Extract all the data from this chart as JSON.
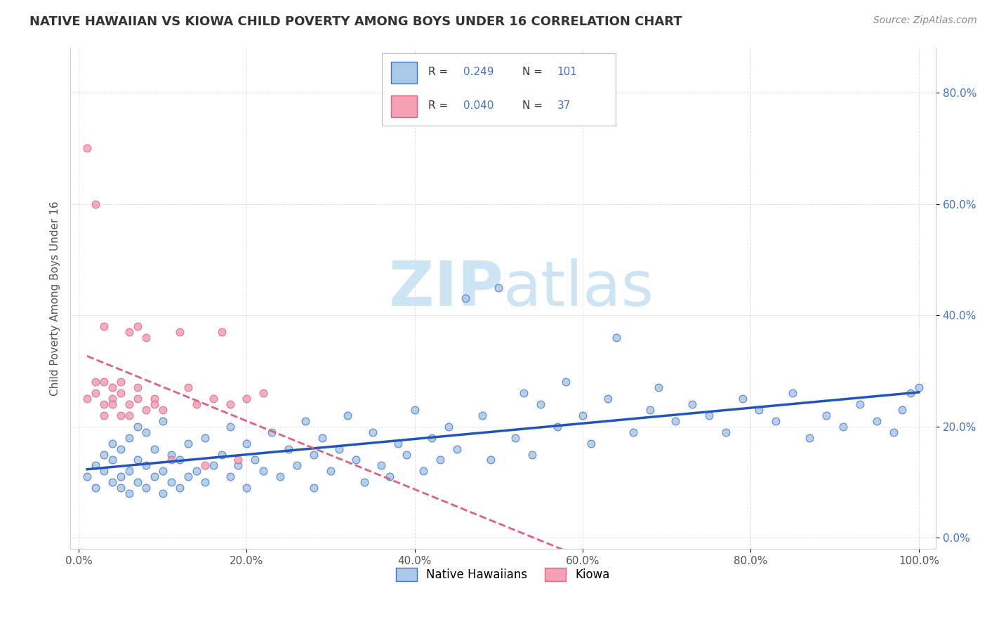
{
  "title": "NATIVE HAWAIIAN VS KIOWA CHILD POVERTY AMONG BOYS UNDER 16 CORRELATION CHART",
  "source": "Source: ZipAtlas.com",
  "ylabel": "Child Poverty Among Boys Under 16",
  "xlim": [
    0.0,
    1.0
  ],
  "x_ticks": [
    0.0,
    0.2,
    0.4,
    0.6,
    0.8,
    1.0
  ],
  "x_tick_labels": [
    "0.0%",
    "20.0%",
    "40.0%",
    "60.0%",
    "80.0%",
    "100.0%"
  ],
  "y_ticks": [
    0.0,
    0.2,
    0.4,
    0.6,
    0.8
  ],
  "y_tick_labels": [
    "0.0%",
    "20.0%",
    "40.0%",
    "60.0%",
    "80.0%"
  ],
  "color_hawaiian": "#aac8e8",
  "color_hawaiian_edge": "#4472c4",
  "color_kiowa": "#f4a0b5",
  "color_kiowa_edge": "#e06080",
  "color_hawaiian_line": "#2255bb",
  "color_kiowa_line": "#e06080",
  "watermark_color": "#cce4f4",
  "background_color": "#ffffff",
  "title_color": "#333333",
  "title_fontsize": 13,
  "nhaw_x": [
    0.01,
    0.02,
    0.02,
    0.03,
    0.03,
    0.04,
    0.04,
    0.04,
    0.05,
    0.05,
    0.05,
    0.06,
    0.06,
    0.06,
    0.07,
    0.07,
    0.07,
    0.08,
    0.08,
    0.08,
    0.09,
    0.09,
    0.1,
    0.1,
    0.1,
    0.11,
    0.11,
    0.12,
    0.12,
    0.13,
    0.13,
    0.14,
    0.15,
    0.15,
    0.16,
    0.17,
    0.18,
    0.18,
    0.19,
    0.2,
    0.2,
    0.21,
    0.22,
    0.23,
    0.24,
    0.25,
    0.26,
    0.27,
    0.28,
    0.28,
    0.29,
    0.3,
    0.31,
    0.32,
    0.33,
    0.34,
    0.35,
    0.36,
    0.37,
    0.38,
    0.39,
    0.4,
    0.41,
    0.42,
    0.43,
    0.44,
    0.45,
    0.46,
    0.48,
    0.49,
    0.5,
    0.52,
    0.53,
    0.54,
    0.55,
    0.57,
    0.58,
    0.6,
    0.61,
    0.63,
    0.64,
    0.66,
    0.68,
    0.69,
    0.71,
    0.73,
    0.75,
    0.77,
    0.79,
    0.81,
    0.83,
    0.85,
    0.87,
    0.89,
    0.91,
    0.93,
    0.95,
    0.97,
    0.98,
    0.99,
    1.0
  ],
  "nhaw_y": [
    0.11,
    0.13,
    0.09,
    0.15,
    0.12,
    0.1,
    0.14,
    0.17,
    0.09,
    0.11,
    0.16,
    0.08,
    0.12,
    0.18,
    0.1,
    0.14,
    0.2,
    0.09,
    0.13,
    0.19,
    0.11,
    0.16,
    0.08,
    0.12,
    0.21,
    0.1,
    0.15,
    0.09,
    0.14,
    0.11,
    0.17,
    0.12,
    0.1,
    0.18,
    0.13,
    0.15,
    0.11,
    0.2,
    0.13,
    0.09,
    0.17,
    0.14,
    0.12,
    0.19,
    0.11,
    0.16,
    0.13,
    0.21,
    0.15,
    0.09,
    0.18,
    0.12,
    0.16,
    0.22,
    0.14,
    0.1,
    0.19,
    0.13,
    0.11,
    0.17,
    0.15,
    0.23,
    0.12,
    0.18,
    0.14,
    0.2,
    0.16,
    0.43,
    0.22,
    0.14,
    0.45,
    0.18,
    0.26,
    0.15,
    0.24,
    0.2,
    0.28,
    0.22,
    0.17,
    0.25,
    0.36,
    0.19,
    0.23,
    0.27,
    0.21,
    0.24,
    0.22,
    0.19,
    0.25,
    0.23,
    0.21,
    0.26,
    0.18,
    0.22,
    0.2,
    0.24,
    0.21,
    0.19,
    0.23,
    0.26,
    0.27
  ],
  "kiowa_x": [
    0.01,
    0.01,
    0.02,
    0.02,
    0.02,
    0.03,
    0.03,
    0.03,
    0.03,
    0.04,
    0.04,
    0.04,
    0.05,
    0.05,
    0.05,
    0.06,
    0.06,
    0.06,
    0.07,
    0.07,
    0.07,
    0.08,
    0.08,
    0.09,
    0.09,
    0.1,
    0.11,
    0.12,
    0.13,
    0.14,
    0.15,
    0.16,
    0.17,
    0.18,
    0.19,
    0.2,
    0.22
  ],
  "kiowa_y": [
    0.7,
    0.25,
    0.28,
    0.6,
    0.26,
    0.24,
    0.28,
    0.38,
    0.22,
    0.25,
    0.27,
    0.24,
    0.22,
    0.26,
    0.28,
    0.24,
    0.22,
    0.37,
    0.25,
    0.27,
    0.38,
    0.23,
    0.36,
    0.25,
    0.24,
    0.23,
    0.14,
    0.37,
    0.27,
    0.24,
    0.13,
    0.25,
    0.37,
    0.24,
    0.14,
    0.25,
    0.26
  ]
}
